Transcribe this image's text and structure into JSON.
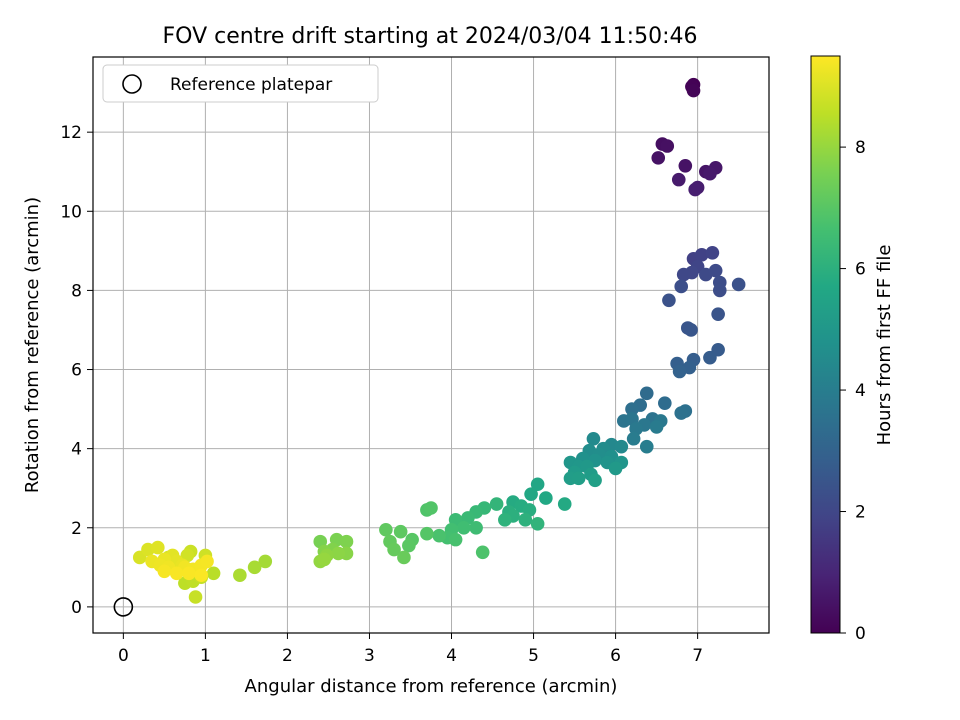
{
  "chart_data": {
    "type": "scatter",
    "title": "FOV centre drift starting at 2024/03/04 11:50:46",
    "xlabel": "Angular distance from reference (arcmin)",
    "ylabel": "Rotation from reference (arcmin)",
    "xlim": [
      -0.37,
      7.87
    ],
    "ylim": [
      -0.66,
      13.9
    ],
    "xticks": [
      0,
      1,
      2,
      3,
      4,
      5,
      6,
      7
    ],
    "yticks": [
      0,
      2,
      4,
      6,
      8,
      10,
      12
    ],
    "grid": true,
    "legend": {
      "position": "top-left",
      "entries": [
        "Reference platepar"
      ]
    },
    "reference_point": {
      "x": 0,
      "y": 0
    },
    "colorbar": {
      "label": "Hours from first FF file",
      "min": 0,
      "max": 9.5,
      "ticks": [
        0,
        2,
        4,
        6,
        8
      ],
      "colormap": "viridis"
    },
    "series": [
      {
        "points": [
          [
            6.95,
            13.2,
            0.0
          ],
          [
            6.93,
            13.15,
            0.05
          ],
          [
            6.95,
            13.05,
            0.1
          ],
          [
            6.57,
            11.7,
            0.35
          ],
          [
            6.63,
            11.65,
            0.4
          ],
          [
            6.52,
            11.35,
            0.45
          ],
          [
            6.85,
            11.15,
            0.5
          ],
          [
            7.1,
            11.0,
            0.55
          ],
          [
            7.22,
            11.1,
            0.6
          ],
          [
            7.15,
            10.95,
            0.65
          ],
          [
            6.77,
            10.8,
            0.7
          ],
          [
            7.0,
            10.6,
            0.75
          ],
          [
            6.97,
            10.55,
            0.8
          ],
          [
            6.95,
            8.8,
            1.8
          ],
          [
            7.05,
            8.9,
            1.85
          ],
          [
            7.18,
            8.95,
            1.9
          ],
          [
            7.0,
            8.6,
            1.95
          ],
          [
            6.93,
            8.45,
            2.0
          ],
          [
            6.83,
            8.4,
            2.05
          ],
          [
            7.1,
            8.4,
            2.1
          ],
          [
            7.22,
            8.5,
            2.15
          ],
          [
            7.27,
            8.2,
            2.2
          ],
          [
            7.27,
            8.0,
            2.25
          ],
          [
            6.8,
            8.1,
            2.3
          ],
          [
            7.5,
            8.15,
            2.35
          ],
          [
            6.65,
            7.75,
            2.4
          ],
          [
            7.25,
            7.4,
            2.45
          ],
          [
            6.88,
            7.05,
            2.5
          ],
          [
            6.92,
            7.0,
            2.55
          ],
          [
            7.25,
            6.5,
            2.7
          ],
          [
            7.15,
            6.3,
            2.75
          ],
          [
            6.95,
            6.25,
            2.8
          ],
          [
            6.75,
            6.15,
            2.85
          ],
          [
            6.9,
            6.05,
            2.9
          ],
          [
            6.78,
            5.95,
            2.95
          ],
          [
            6.38,
            5.4,
            3.3
          ],
          [
            6.6,
            5.15,
            3.35
          ],
          [
            6.3,
            5.1,
            3.4
          ],
          [
            6.2,
            5.0,
            3.45
          ],
          [
            6.85,
            4.95,
            3.5
          ],
          [
            6.8,
            4.9,
            3.55
          ],
          [
            6.45,
            4.75,
            3.6
          ],
          [
            6.1,
            4.7,
            3.65
          ],
          [
            6.2,
            4.75,
            3.7
          ],
          [
            6.35,
            4.6,
            3.75
          ],
          [
            6.55,
            4.7,
            3.8
          ],
          [
            6.25,
            4.5,
            3.85
          ],
          [
            6.5,
            4.55,
            3.9
          ],
          [
            6.22,
            4.25,
            3.95
          ],
          [
            6.38,
            4.05,
            4.0
          ],
          [
            5.95,
            4.1,
            4.4
          ],
          [
            6.07,
            4.05,
            4.45
          ],
          [
            5.73,
            4.25,
            4.5
          ],
          [
            5.85,
            4.0,
            4.55
          ],
          [
            5.68,
            3.95,
            4.6
          ],
          [
            5.8,
            3.85,
            4.65
          ],
          [
            5.95,
            3.8,
            4.7
          ],
          [
            5.6,
            3.75,
            4.75
          ],
          [
            5.75,
            3.7,
            4.8
          ],
          [
            5.9,
            3.65,
            4.85
          ],
          [
            6.07,
            3.65,
            4.9
          ],
          [
            5.45,
            3.65,
            4.95
          ],
          [
            5.55,
            3.55,
            5.0
          ],
          [
            5.65,
            3.55,
            5.05
          ],
          [
            6.0,
            3.5,
            5.1
          ],
          [
            5.5,
            3.4,
            5.15
          ],
          [
            5.7,
            3.35,
            5.2
          ],
          [
            5.45,
            3.25,
            5.25
          ],
          [
            5.55,
            3.25,
            5.3
          ],
          [
            5.75,
            3.2,
            5.35
          ],
          [
            5.05,
            3.1,
            5.6
          ],
          [
            4.97,
            2.85,
            5.65
          ],
          [
            5.15,
            2.75,
            5.7
          ],
          [
            5.38,
            2.6,
            5.75
          ],
          [
            4.75,
            2.65,
            5.8
          ],
          [
            4.85,
            2.55,
            5.85
          ],
          [
            4.95,
            2.45,
            5.9
          ],
          [
            4.7,
            2.4,
            5.95
          ],
          [
            4.75,
            2.3,
            6.0
          ],
          [
            4.9,
            2.2,
            6.05
          ],
          [
            4.65,
            2.2,
            6.1
          ],
          [
            5.05,
            2.1,
            6.15
          ],
          [
            4.55,
            2.6,
            6.2
          ],
          [
            4.4,
            2.5,
            6.3
          ],
          [
            4.3,
            2.4,
            6.35
          ],
          [
            4.2,
            2.25,
            6.4
          ],
          [
            4.05,
            2.2,
            6.45
          ],
          [
            4.3,
            2.0,
            6.5
          ],
          [
            4.15,
            2.0,
            6.55
          ],
          [
            4.0,
            1.95,
            6.6
          ],
          [
            3.95,
            1.75,
            6.65
          ],
          [
            4.05,
            1.7,
            6.7
          ],
          [
            3.85,
            1.8,
            6.75
          ],
          [
            4.38,
            1.38,
            6.8
          ],
          [
            3.7,
            2.45,
            6.85
          ],
          [
            3.75,
            2.5,
            6.9
          ],
          [
            3.7,
            1.85,
            6.95
          ],
          [
            3.52,
            1.7,
            7.0
          ],
          [
            3.48,
            1.55,
            7.05
          ],
          [
            3.38,
            1.9,
            7.1
          ],
          [
            3.2,
            1.95,
            7.15
          ],
          [
            3.25,
            1.65,
            7.2
          ],
          [
            3.3,
            1.45,
            7.25
          ],
          [
            3.42,
            1.25,
            7.3
          ],
          [
            2.4,
            1.65,
            7.55
          ],
          [
            2.6,
            1.7,
            7.6
          ],
          [
            2.72,
            1.65,
            7.65
          ],
          [
            2.55,
            1.45,
            7.7
          ],
          [
            2.45,
            1.4,
            7.75
          ],
          [
            2.72,
            1.35,
            7.8
          ],
          [
            2.62,
            1.35,
            7.85
          ],
          [
            2.48,
            1.3,
            7.9
          ],
          [
            2.4,
            1.15,
            7.95
          ],
          [
            2.45,
            1.2,
            8.0
          ],
          [
            1.73,
            1.15,
            8.2
          ],
          [
            1.6,
            1.0,
            8.25
          ],
          [
            1.42,
            0.8,
            8.3
          ],
          [
            1.1,
            0.85,
            8.5
          ],
          [
            0.75,
            0.6,
            8.55
          ],
          [
            0.85,
            0.65,
            8.6
          ],
          [
            0.95,
            0.75,
            8.65
          ],
          [
            0.88,
            0.25,
            8.7
          ],
          [
            0.82,
            1.4,
            8.75
          ],
          [
            1.0,
            1.3,
            8.8
          ],
          [
            0.78,
            1.3,
            8.85
          ],
          [
            0.55,
            1.25,
            8.9
          ],
          [
            0.2,
            1.25,
            8.95
          ],
          [
            0.3,
            1.45,
            9.0
          ],
          [
            0.42,
            1.5,
            9.05
          ],
          [
            0.6,
            1.3,
            9.1
          ],
          [
            0.65,
            1.15,
            9.15
          ],
          [
            0.72,
            1.05,
            9.2
          ],
          [
            0.5,
            1.2,
            9.22
          ],
          [
            0.35,
            1.15,
            9.25
          ],
          [
            0.45,
            1.05,
            9.28
          ],
          [
            0.55,
            1.0,
            9.3
          ],
          [
            0.75,
            1.0,
            9.32
          ],
          [
            0.85,
            0.95,
            9.34
          ],
          [
            0.95,
            1.05,
            9.36
          ],
          [
            1.02,
            1.15,
            9.38
          ],
          [
            0.5,
            0.9,
            9.4
          ],
          [
            0.65,
            0.85,
            9.42
          ],
          [
            0.8,
            0.85,
            9.44
          ],
          [
            0.95,
            0.8,
            9.46
          ]
        ]
      }
    ]
  }
}
